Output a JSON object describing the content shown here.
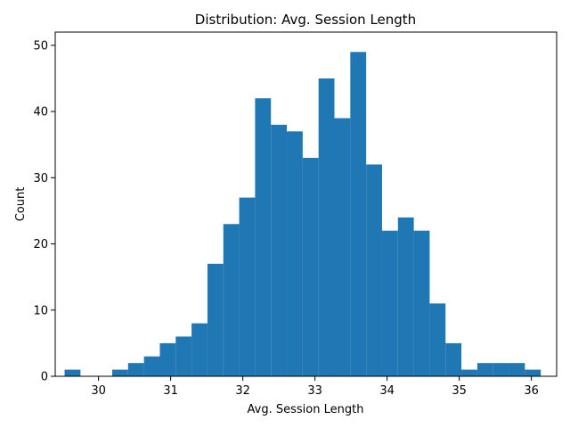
{
  "chart_data": {
    "type": "bar",
    "title": "Distribution: Avg. Session Length",
    "xlabel": "Avg. Session Length",
    "ylabel": "Count",
    "bar_color": "#1f77b4",
    "xlim": [
      29.4,
      36.35
    ],
    "ylim": [
      0,
      52
    ],
    "grid": false,
    "x_ticks": [
      30,
      31,
      32,
      33,
      34,
      35,
      36
    ],
    "y_ticks": [
      0,
      10,
      20,
      30,
      40,
      50
    ],
    "bins": [
      {
        "start": 29.53,
        "end": 29.75,
        "count": 1
      },
      {
        "start": 29.75,
        "end": 29.97,
        "count": 0
      },
      {
        "start": 29.97,
        "end": 30.19,
        "count": 0
      },
      {
        "start": 30.19,
        "end": 30.41,
        "count": 1
      },
      {
        "start": 30.41,
        "end": 30.63,
        "count": 2
      },
      {
        "start": 30.63,
        "end": 30.85,
        "count": 3
      },
      {
        "start": 30.85,
        "end": 31.07,
        "count": 5
      },
      {
        "start": 31.07,
        "end": 31.29,
        "count": 6
      },
      {
        "start": 31.29,
        "end": 31.51,
        "count": 8
      },
      {
        "start": 31.51,
        "end": 31.73,
        "count": 17
      },
      {
        "start": 31.73,
        "end": 31.95,
        "count": 23
      },
      {
        "start": 31.95,
        "end": 32.17,
        "count": 27
      },
      {
        "start": 32.17,
        "end": 32.39,
        "count": 42
      },
      {
        "start": 32.39,
        "end": 32.61,
        "count": 38
      },
      {
        "start": 32.61,
        "end": 32.83,
        "count": 37
      },
      {
        "start": 32.83,
        "end": 33.05,
        "count": 33
      },
      {
        "start": 33.05,
        "end": 33.27,
        "count": 45
      },
      {
        "start": 33.27,
        "end": 33.49,
        "count": 39
      },
      {
        "start": 33.49,
        "end": 33.71,
        "count": 49
      },
      {
        "start": 33.71,
        "end": 33.93,
        "count": 32
      },
      {
        "start": 33.93,
        "end": 34.15,
        "count": 22
      },
      {
        "start": 34.15,
        "end": 34.37,
        "count": 24
      },
      {
        "start": 34.37,
        "end": 34.59,
        "count": 22
      },
      {
        "start": 34.59,
        "end": 34.81,
        "count": 11
      },
      {
        "start": 34.81,
        "end": 35.03,
        "count": 5
      },
      {
        "start": 35.03,
        "end": 35.25,
        "count": 1
      },
      {
        "start": 35.25,
        "end": 35.47,
        "count": 2
      },
      {
        "start": 35.47,
        "end": 35.69,
        "count": 2
      },
      {
        "start": 35.69,
        "end": 35.91,
        "count": 2
      },
      {
        "start": 35.91,
        "end": 36.13,
        "count": 1
      }
    ]
  }
}
